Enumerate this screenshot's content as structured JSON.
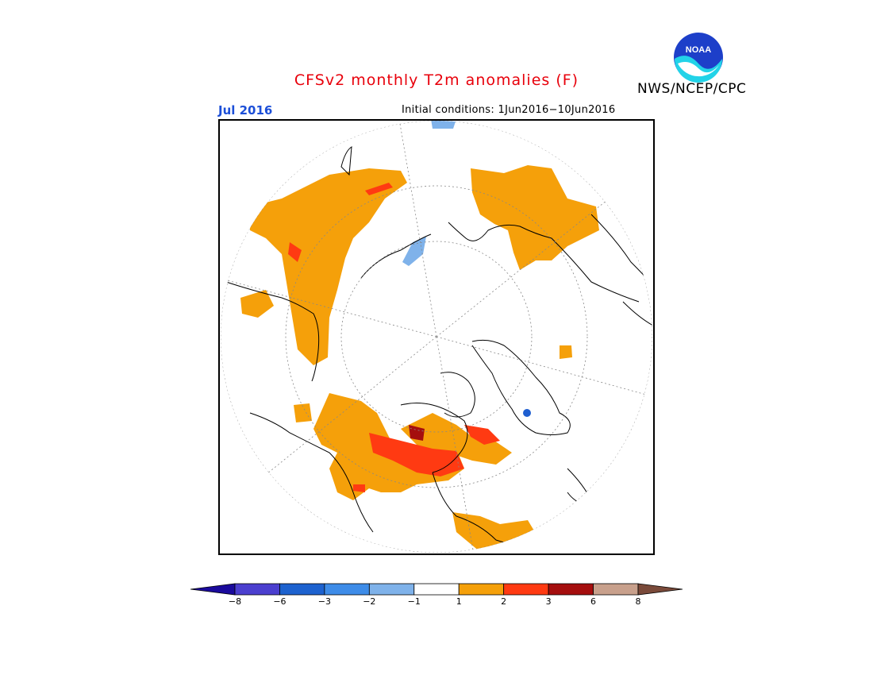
{
  "title": "CFSv2 monthly T2m anomalies (F)",
  "agency": "NWS/NCEP/CPC",
  "logo_text": "NOAA",
  "valid_month": "Jul 2016",
  "initial_conditions": "Initial conditions: 1Jun2016−10Jun2016",
  "colors": {
    "title": "#e8000b",
    "month": "#1c4fd8",
    "cool_light": "#7fb2ea",
    "warm_1": "#f5a00a",
    "warm_2": "#ff3a12",
    "warm_3": "#a50e0e",
    "cool_dark": "#1f5fd0"
  },
  "colorbar": {
    "bins": [
      {
        "color": "#1a0a9c"
      },
      {
        "color": "#4b3fcf"
      },
      {
        "color": "#1d62cf"
      },
      {
        "color": "#3e8ce8"
      },
      {
        "color": "#7fb2ea"
      },
      {
        "color": "#ffffff"
      },
      {
        "color": "#f5a00a"
      },
      {
        "color": "#ff3a12"
      },
      {
        "color": "#a50e0e"
      },
      {
        "color": "#c8a08c"
      },
      {
        "color": "#7a4a3a"
      }
    ],
    "labels": [
      "−8",
      "−6",
      "−3",
      "−2",
      "−1",
      "1",
      "2",
      "3",
      "6",
      "8"
    ]
  }
}
